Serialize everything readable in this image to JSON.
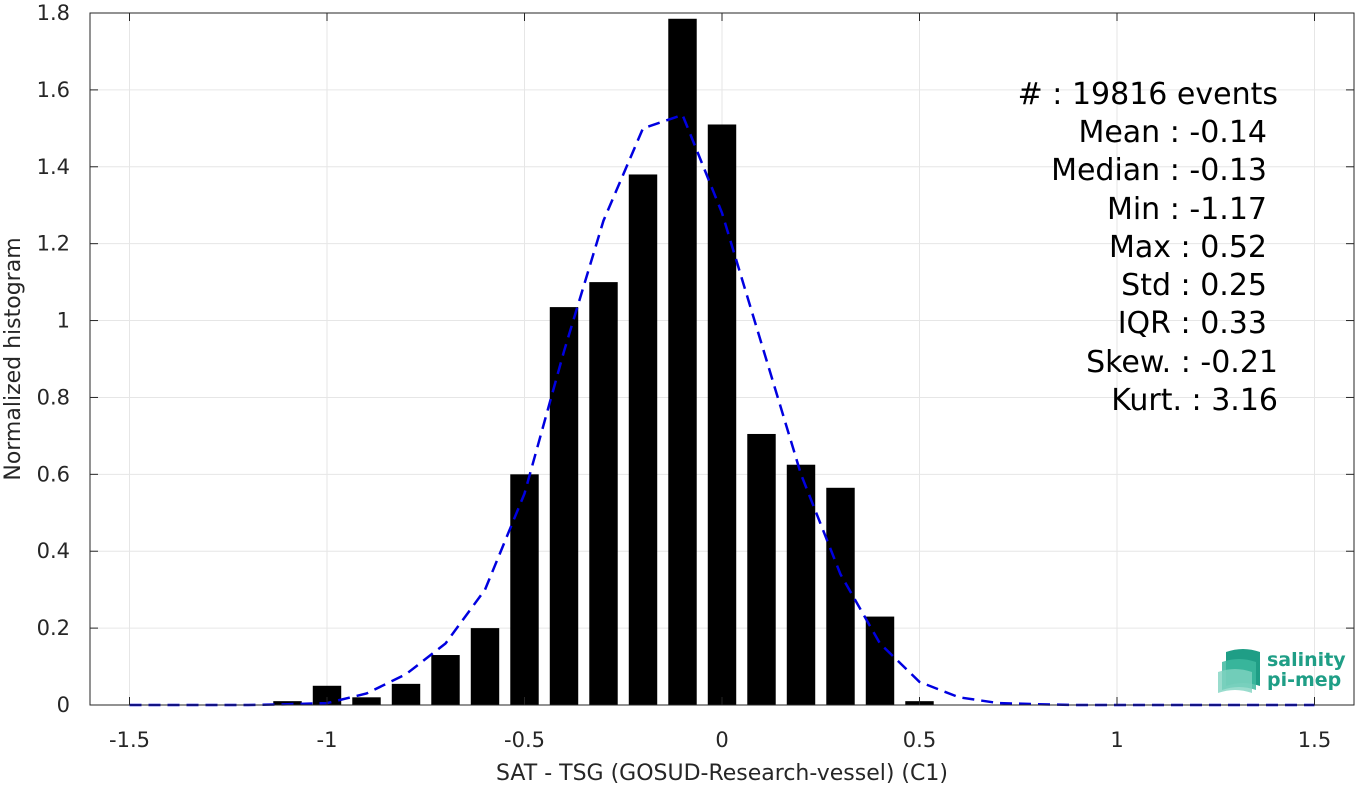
{
  "chart_data": {
    "type": "bar",
    "xlabel": "SAT - TSG (GOSUD-Research-vessel) (C1)",
    "ylabel": "Normalized histogram",
    "xlim": [
      -1.6,
      1.6
    ],
    "ylim": [
      0,
      1.8
    ],
    "xticks": [
      -1.5,
      -1,
      -0.5,
      0,
      0.5,
      1,
      1.5
    ],
    "xtick_labels": [
      "-1.5",
      "-1",
      "-0.5",
      "0",
      "0.5",
      "1",
      "1.5"
    ],
    "yticks": [
      0,
      0.2,
      0.4,
      0.6,
      0.8,
      1,
      1.2,
      1.4,
      1.6,
      1.8
    ],
    "ytick_labels": [
      "0",
      "0.2",
      "0.4",
      "0.6",
      "0.8",
      "1",
      "1.2",
      "1.4",
      "1.6",
      "1.8"
    ],
    "grid": true,
    "bar_width": 0.072,
    "bar_color": "#000000",
    "bars": {
      "x": [
        -1.1,
        -1.0,
        -0.9,
        -0.8,
        -0.7,
        -0.6,
        -0.5,
        -0.4,
        -0.3,
        -0.2,
        -0.1,
        0.0,
        0.1,
        0.2,
        0.3,
        0.4,
        0.5
      ],
      "values": [
        0.01,
        0.05,
        0.02,
        0.055,
        0.13,
        0.2,
        0.6,
        1.035,
        1.1,
        1.38,
        1.785,
        1.51,
        0.705,
        0.625,
        0.565,
        0.23,
        0.01
      ]
    },
    "fit_curve": {
      "style": "dashed",
      "color": "#0000e0",
      "x": [
        -1.5,
        -1.4,
        -1.3,
        -1.2,
        -1.1,
        -1.0,
        -0.9,
        -0.8,
        -0.7,
        -0.6,
        -0.5,
        -0.4,
        -0.3,
        -0.2,
        -0.1,
        0.0,
        0.1,
        0.2,
        0.3,
        0.4,
        0.5,
        0.6,
        0.7,
        0.8,
        0.9,
        1.0,
        1.1,
        1.2,
        1.3,
        1.4,
        1.5
      ],
      "y": [
        0.0,
        0.0,
        0.0,
        0.0,
        0.002,
        0.005,
        0.03,
        0.08,
        0.16,
        0.3,
        0.55,
        0.92,
        1.26,
        1.5,
        1.535,
        1.28,
        0.94,
        0.6,
        0.34,
        0.16,
        0.06,
        0.02,
        0.005,
        0.002,
        0.0,
        0.0,
        0.0,
        0.0,
        0.0,
        0.0,
        0.0
      ]
    },
    "stats": [
      "#  : 19816 events",
      "Mean : -0.14",
      "Median : -0.13",
      "Min : -1.17",
      "Max : 0.52",
      "Std : 0.25",
      "IQR : 0.33",
      "Skew. : -0.21",
      "Kurt. : 3.16"
    ],
    "logo": {
      "line1": "salinity",
      "line2": "pi-mep",
      "color": "#1f9e86"
    }
  }
}
